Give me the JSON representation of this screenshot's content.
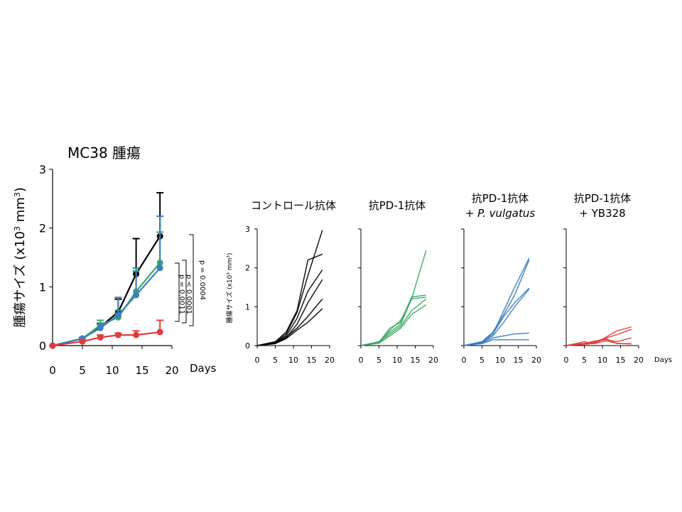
{
  "left_panel": {
    "title": "MC38 腫瘍",
    "ylabel_prefix": "腫瘍サイズ (x10",
    "ylabel_sup": "3",
    "ylabel_suffix": " mm",
    "ylabel_sup2": "3",
    "ylabel_close": ")",
    "xlabel": "Days",
    "pvalues": [
      "p = 0.0011",
      "p < 0.0001",
      "p = 0.0004"
    ]
  },
  "right_panel": {
    "ylabel": "腫瘍サイズ (x10³ mm³)",
    "xlabel": "Days"
  },
  "chart_data": [
    {
      "type": "line",
      "title": "MC38 腫瘍",
      "xlabel": "Days",
      "ylabel": "腫瘍サイズ (x10³ mm³)",
      "xlim": [
        0,
        20
      ],
      "ylim": [
        0,
        3
      ],
      "xticks": [
        0,
        5,
        10,
        15,
        20
      ],
      "yticks": [
        0,
        1,
        2,
        3
      ],
      "x": [
        0,
        5,
        8,
        11,
        14,
        18
      ],
      "series": [
        {
          "color": "#000000",
          "values": [
            0.0,
            0.12,
            0.32,
            0.57,
            1.22,
            1.86
          ],
          "error": [
            0,
            0.02,
            0.06,
            0.22,
            0.6,
            0.74
          ]
        },
        {
          "color": "#3aaa64",
          "values": [
            0.0,
            0.12,
            0.35,
            0.48,
            0.92,
            1.41
          ],
          "error": [
            0,
            0.02,
            0.08,
            0.12,
            0.35,
            0.52
          ]
        },
        {
          "color": "#3c7dc3",
          "values": [
            0.0,
            0.12,
            0.3,
            0.52,
            0.86,
            1.32
          ],
          "error": [
            0,
            0.02,
            0.06,
            0.3,
            0.46,
            0.88
          ]
        },
        {
          "color": "#e03c3c",
          "values": [
            0.0,
            0.07,
            0.14,
            0.18,
            0.18,
            0.23
          ],
          "error": [
            0,
            0.02,
            0.04,
            0.03,
            0.07,
            0.2
          ]
        }
      ]
    },
    {
      "type": "line",
      "title": "コントロール抗体",
      "xlim": [
        0,
        20
      ],
      "ylim": [
        0,
        3
      ],
      "xticks": [
        0,
        5,
        10,
        15,
        20
      ],
      "yticks": [
        0,
        1,
        2,
        3
      ],
      "color": "#000000",
      "x": [
        0,
        5,
        8,
        11,
        14,
        18
      ],
      "series": [
        {
          "values": [
            0,
            0.08,
            0.3,
            0.85,
            1.8,
            2.97
          ]
        },
        {
          "values": [
            0,
            0.1,
            0.35,
            0.9,
            2.2,
            2.35
          ]
        },
        {
          "values": [
            0,
            0.08,
            0.25,
            0.7,
            1.4,
            1.95
          ]
        },
        {
          "values": [
            0,
            0.06,
            0.2,
            0.55,
            1.1,
            1.7
          ]
        },
        {
          "values": [
            0,
            0.06,
            0.22,
            0.45,
            0.75,
            1.2
          ]
        },
        {
          "values": [
            0,
            0.05,
            0.18,
            0.4,
            0.6,
            0.95
          ]
        }
      ]
    },
    {
      "type": "line",
      "title": "抗PD-1抗体",
      "xlim": [
        0,
        20
      ],
      "ylim": [
        0,
        3
      ],
      "xticks": [
        0,
        5,
        10,
        15,
        20
      ],
      "yticks": [
        0,
        1,
        2,
        3
      ],
      "color": "#3aaa64",
      "x": [
        0,
        5,
        8,
        11,
        14,
        18
      ],
      "series": [
        {
          "values": [
            0,
            0.1,
            0.35,
            0.55,
            1.2,
            2.45
          ]
        },
        {
          "values": [
            0,
            0.08,
            0.45,
            0.6,
            1.25,
            1.3
          ]
        },
        {
          "values": [
            0,
            0.1,
            0.4,
            0.65,
            1.2,
            1.25
          ]
        },
        {
          "values": [
            0,
            0.08,
            0.3,
            0.5,
            0.9,
            1.2
          ]
        },
        {
          "values": [
            0,
            0.06,
            0.25,
            0.45,
            0.8,
            1.05
          ]
        }
      ]
    },
    {
      "type": "line",
      "title": "抗PD-1抗体",
      "subtitle": "+ P. vulgatus",
      "xlim": [
        0,
        20
      ],
      "ylim": [
        0,
        3
      ],
      "xticks": [
        0,
        5,
        10,
        15,
        20
      ],
      "yticks": [
        0,
        1,
        2,
        3
      ],
      "color": "#3c7dc3",
      "x": [
        0,
        5,
        8,
        11,
        14,
        18
      ],
      "series": [
        {
          "values": [
            0,
            0.1,
            0.3,
            0.9,
            1.5,
            2.25
          ]
        },
        {
          "values": [
            0,
            0.1,
            0.35,
            0.8,
            1.3,
            2.2
          ]
        },
        {
          "values": [
            0,
            0.08,
            0.3,
            0.75,
            1.1,
            1.48
          ]
        },
        {
          "values": [
            0,
            0.08,
            0.25,
            0.6,
            1.0,
            1.45
          ]
        },
        {
          "values": [
            0,
            0.06,
            0.2,
            0.25,
            0.3,
            0.32
          ]
        },
        {
          "values": [
            0,
            0.05,
            0.15,
            0.15,
            0.15,
            0.15
          ]
        }
      ]
    },
    {
      "type": "line",
      "title": "抗PD-1抗体",
      "subtitle": "+ YB328",
      "xlim": [
        0,
        20
      ],
      "ylim": [
        0,
        3
      ],
      "xticks": [
        0,
        5,
        10,
        15,
        20
      ],
      "yticks": [
        0,
        1,
        2,
        3
      ],
      "color": "#e03c3c",
      "x": [
        0,
        5,
        8,
        11,
        14,
        18
      ],
      "series": [
        {
          "values": [
            0,
            0.1,
            0.05,
            0.22,
            0.38,
            0.48
          ]
        },
        {
          "values": [
            0,
            0.06,
            0.1,
            0.2,
            0.28,
            0.42
          ]
        },
        {
          "values": [
            0,
            0.05,
            0.12,
            0.15,
            0.1,
            0.2
          ]
        },
        {
          "values": [
            0,
            0.04,
            0.08,
            0.18,
            0.05,
            0.05
          ]
        },
        {
          "values": [
            0,
            0.03,
            0.06,
            0.12,
            0.06,
            0.04
          ]
        }
      ]
    }
  ]
}
